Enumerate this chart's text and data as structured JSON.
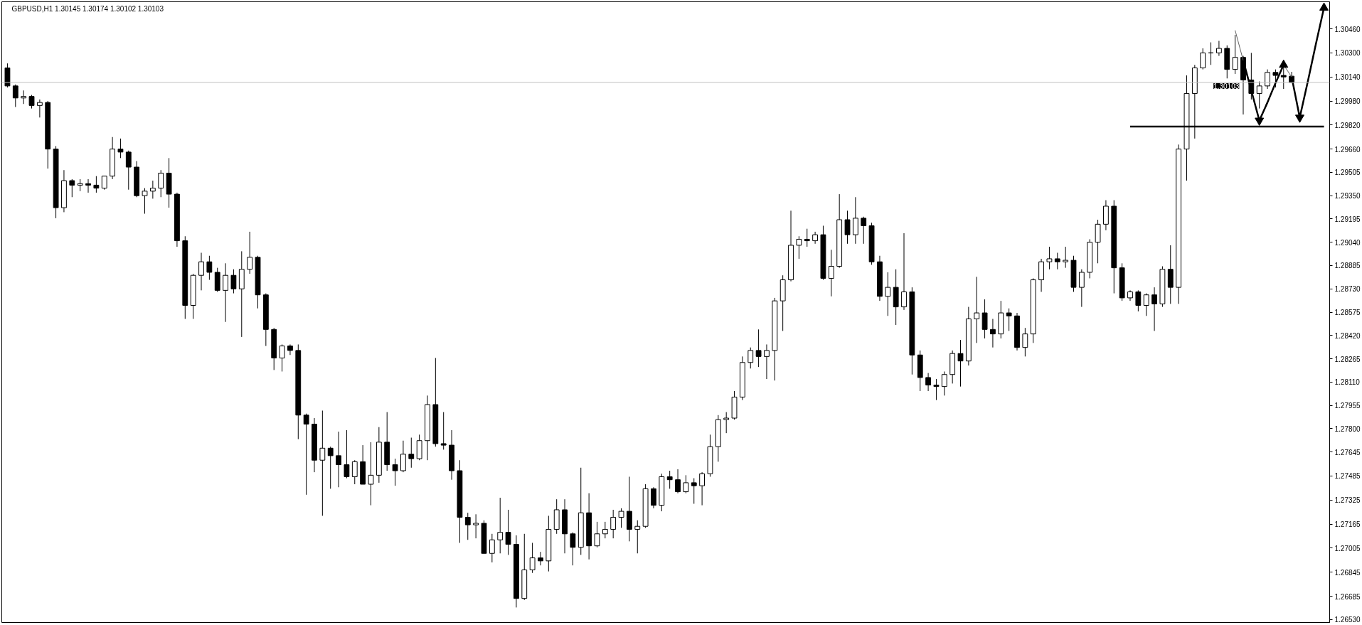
{
  "chart_data": {
    "type": "candlestick",
    "title": "GBPUSD,H1 1.30145 1.30174 1.30102 1.30103",
    "categories": [
      null,
      null,
      null,
      null,
      null,
      null,
      null,
      null,
      null,
      null,
      null,
      null,
      null,
      null,
      null,
      null,
      null,
      null,
      null,
      null,
      null,
      null,
      null,
      null,
      null,
      null,
      null,
      null,
      null,
      null,
      null,
      null,
      null,
      null,
      null,
      null,
      null,
      null,
      null,
      null,
      null,
      null,
      null,
      null,
      null,
      null,
      null,
      null,
      null,
      null,
      null,
      null,
      null,
      null,
      null,
      null,
      null,
      null,
      null,
      null,
      null,
      null,
      null,
      null,
      null,
      null,
      null,
      null,
      null,
      null,
      null,
      null,
      null,
      null,
      null,
      null,
      null,
      null,
      null,
      null,
      null,
      null,
      null,
      null,
      null,
      null,
      null,
      null,
      null,
      null,
      null,
      null,
      null,
      null,
      null,
      null,
      null,
      null,
      null,
      null,
      null,
      null,
      null,
      null,
      null,
      null,
      null,
      null,
      null,
      null,
      null,
      null,
      null,
      null,
      null,
      null,
      null,
      null,
      null,
      null,
      null,
      null,
      null,
      null,
      null,
      null,
      null,
      null,
      null,
      null,
      null,
      null,
      null,
      null,
      null,
      null,
      null,
      null,
      null,
      null,
      null,
      null,
      null,
      null,
      null,
      null,
      null,
      null,
      null,
      null,
      null,
      null,
      null,
      null,
      null,
      null,
      null,
      null,
      null,
      null,
      null,
      null,
      null,
      null
    ],
    "ohlc": [
      [
        1.302,
        1.3023,
        1.3007,
        1.3008
      ],
      [
        1.3008,
        1.3009,
        1.2994,
        1.3
      ],
      [
        1.3,
        1.3005,
        1.2996,
        1.3001
      ],
      [
        1.3001,
        1.3002,
        1.2993,
        1.2995
      ],
      [
        1.2995,
        1.2999,
        1.2987,
        1.2997
      ],
      [
        1.2997,
        1.2998,
        1.2953,
        1.2966
      ],
      [
        1.2966,
        1.2968,
        1.292,
        1.2927
      ],
      [
        1.2927,
        1.2952,
        1.2924,
        1.2945
      ],
      [
        1.2945,
        1.2946,
        1.2934,
        1.2942
      ],
      [
        1.2942,
        1.2946,
        1.2938,
        1.2943
      ],
      [
        1.2943,
        1.2946,
        1.2937,
        1.2942
      ],
      [
        1.2942,
        1.2948,
        1.2937,
        1.294
      ],
      [
        1.294,
        1.2948,
        1.2939,
        1.2948
      ],
      [
        1.2948,
        1.2974,
        1.2946,
        1.2966
      ],
      [
        1.2966,
        1.2973,
        1.296,
        1.2964
      ],
      [
        1.2964,
        1.2965,
        1.2939,
        1.2954
      ],
      [
        1.2954,
        1.2958,
        1.2934,
        1.2935
      ],
      [
        1.2935,
        1.294,
        1.2923,
        1.2938
      ],
      [
        1.2938,
        1.2945,
        1.2933,
        1.294
      ],
      [
        1.294,
        1.2952,
        1.2934,
        1.295
      ],
      [
        1.295,
        1.296,
        1.2927,
        1.2936
      ],
      [
        1.2936,
        1.2937,
        1.2901,
        1.2905
      ],
      [
        1.2905,
        1.2908,
        1.2853,
        1.2862
      ],
      [
        1.2862,
        1.2883,
        1.2853,
        1.2882
      ],
      [
        1.2882,
        1.2897,
        1.2872,
        1.2891
      ],
      [
        1.2891,
        1.2895,
        1.2879,
        1.2884
      ],
      [
        1.2884,
        1.2887,
        1.2871,
        1.2872
      ],
      [
        1.2872,
        1.289,
        1.2851,
        1.2882
      ],
      [
        1.2882,
        1.2886,
        1.287,
        1.2873
      ],
      [
        1.2873,
        1.2898,
        1.2841,
        1.2886
      ],
      [
        1.2886,
        1.2911,
        1.2883,
        1.2894
      ],
      [
        1.2894,
        1.2895,
        1.286,
        1.2869
      ],
      [
        1.2869,
        1.287,
        1.2835,
        1.2846
      ],
      [
        1.2846,
        1.2847,
        1.2819,
        1.2827
      ],
      [
        1.2827,
        1.2836,
        1.2818,
        1.2835
      ],
      [
        1.2835,
        1.2836,
        1.2829,
        1.2832
      ],
      [
        1.2832,
        1.2836,
        1.2773,
        1.2789
      ],
      [
        1.2789,
        1.279,
        1.2736,
        1.2783
      ],
      [
        1.2783,
        1.2787,
        1.2751,
        1.2759
      ],
      [
        1.2759,
        1.2792,
        1.2722,
        1.2767
      ],
      [
        1.2767,
        1.2768,
        1.274,
        1.2762
      ],
      [
        1.2762,
        1.2778,
        1.2741,
        1.2756
      ],
      [
        1.2756,
        1.2779,
        1.2747,
        1.2748
      ],
      [
        1.2748,
        1.2759,
        1.2743,
        1.2758
      ],
      [
        1.2758,
        1.2769,
        1.2743,
        1.2743
      ],
      [
        1.2743,
        1.2771,
        1.2729,
        1.2749
      ],
      [
        1.2749,
        1.2781,
        1.2744,
        1.2771
      ],
      [
        1.2771,
        1.2791,
        1.2752,
        1.2756
      ],
      [
        1.2756,
        1.276,
        1.2742,
        1.2752
      ],
      [
        1.2752,
        1.2772,
        1.2751,
        1.2763
      ],
      [
        1.2763,
        1.2774,
        1.2754,
        1.276
      ],
      [
        1.276,
        1.2776,
        1.2759,
        1.2772
      ],
      [
        1.2772,
        1.2802,
        1.2759,
        1.2796
      ],
      [
        1.2796,
        1.2827,
        1.2768,
        1.277
      ],
      [
        1.277,
        1.2791,
        1.2766,
        1.2769
      ],
      [
        1.2769,
        1.2779,
        1.2746,
        1.2752
      ],
      [
        1.2752,
        1.2759,
        1.2704,
        1.2721
      ],
      [
        1.2721,
        1.2724,
        1.2706,
        1.2716
      ],
      [
        1.2716,
        1.2723,
        1.2707,
        1.2717
      ],
      [
        1.2717,
        1.2719,
        1.2697,
        1.2697
      ],
      [
        1.2697,
        1.271,
        1.2691,
        1.2706
      ],
      [
        1.2706,
        1.2734,
        1.2697,
        1.2711
      ],
      [
        1.2711,
        1.2726,
        1.2696,
        1.2703
      ],
      [
        1.2703,
        1.2709,
        1.2661,
        1.2667
      ],
      [
        1.2667,
        1.271,
        1.2666,
        1.2686
      ],
      [
        1.2686,
        1.2704,
        1.2684,
        1.2694
      ],
      [
        1.2694,
        1.2698,
        1.2689,
        1.2692
      ],
      [
        1.2692,
        1.2722,
        1.2685,
        1.2713
      ],
      [
        1.2713,
        1.2733,
        1.271,
        1.2726
      ],
      [
        1.2726,
        1.2733,
        1.2697,
        1.271
      ],
      [
        1.271,
        1.2711,
        1.2689,
        1.2701
      ],
      [
        1.2701,
        1.2754,
        1.2696,
        1.2724
      ],
      [
        1.2724,
        1.2737,
        1.2693,
        1.2702
      ],
      [
        1.2702,
        1.2718,
        1.2701,
        1.271
      ],
      [
        1.271,
        1.2718,
        1.2707,
        1.2713
      ],
      [
        1.2713,
        1.2726,
        1.2707,
        1.2721
      ],
      [
        1.2721,
        1.2727,
        1.2714,
        1.2725
      ],
      [
        1.2725,
        1.2748,
        1.2705,
        1.2713
      ],
      [
        1.2713,
        1.2719,
        1.2697,
        1.2715
      ],
      [
        1.2715,
        1.2743,
        1.2714,
        1.274
      ],
      [
        1.274,
        1.2741,
        1.2727,
        1.2729
      ],
      [
        1.2729,
        1.275,
        1.2725,
        1.2748
      ],
      [
        1.2748,
        1.2752,
        1.274,
        1.2746
      ],
      [
        1.2746,
        1.2753,
        1.2737,
        1.2738
      ],
      [
        1.2738,
        1.2749,
        1.2737,
        1.2744
      ],
      [
        1.2744,
        1.2747,
        1.273,
        1.2742
      ],
      [
        1.2742,
        1.2751,
        1.2729,
        1.275
      ],
      [
        1.275,
        1.2776,
        1.2748,
        1.2768
      ],
      [
        1.2768,
        1.2789,
        1.2758,
        1.2786
      ],
      [
        1.2786,
        1.2791,
        1.2777,
        1.2787
      ],
      [
        1.2787,
        1.2805,
        1.2786,
        1.2801
      ],
      [
        1.2801,
        1.2828,
        1.2799,
        1.2824
      ],
      [
        1.2824,
        1.2834,
        1.282,
        1.2832
      ],
      [
        1.2832,
        1.2846,
        1.2821,
        1.2828
      ],
      [
        1.2828,
        1.2836,
        1.2813,
        1.2832
      ],
      [
        1.2832,
        1.2867,
        1.2812,
        1.2865
      ],
      [
        1.2865,
        1.2882,
        1.2845,
        1.2879
      ],
      [
        1.2879,
        1.2925,
        1.2878,
        1.2902
      ],
      [
        1.2902,
        1.2908,
        1.2893,
        1.2906
      ],
      [
        1.2906,
        1.2913,
        1.2901,
        1.2905
      ],
      [
        1.2905,
        1.2911,
        1.2903,
        1.2909
      ],
      [
        1.2909,
        1.2915,
        1.2879,
        1.288
      ],
      [
        1.288,
        1.2899,
        1.2868,
        1.2888
      ],
      [
        1.2888,
        1.2936,
        1.2887,
        1.2919
      ],
      [
        1.2919,
        1.2925,
        1.2903,
        1.2909
      ],
      [
        1.2909,
        1.2934,
        1.2903,
        1.292
      ],
      [
        1.292,
        1.2921,
        1.2903,
        1.2915
      ],
      [
        1.2915,
        1.2917,
        1.2889,
        1.2891
      ],
      [
        1.2891,
        1.2895,
        1.2865,
        1.2868
      ],
      [
        1.2868,
        1.2884,
        1.2855,
        1.2874
      ],
      [
        1.2874,
        1.2886,
        1.2849,
        1.2861
      ],
      [
        1.2861,
        1.291,
        1.2859,
        1.2871
      ],
      [
        1.2871,
        1.2874,
        1.2816,
        1.2829
      ],
      [
        1.2829,
        1.2832,
        1.2805,
        1.2814
      ],
      [
        1.2814,
        1.2817,
        1.2805,
        1.2809
      ],
      [
        1.2809,
        1.2813,
        1.2799,
        1.2808
      ],
      [
        1.2808,
        1.2818,
        1.2802,
        1.2816
      ],
      [
        1.2816,
        1.2832,
        1.281,
        1.283
      ],
      [
        1.283,
        1.2839,
        1.2808,
        1.2825
      ],
      [
        1.2825,
        1.2861,
        1.2822,
        1.2853
      ],
      [
        1.2853,
        1.2881,
        1.2837,
        1.2857
      ],
      [
        1.2857,
        1.2866,
        1.284,
        1.2846
      ],
      [
        1.2846,
        1.2853,
        1.2834,
        1.2843
      ],
      [
        1.2843,
        1.2865,
        1.284,
        1.2857
      ],
      [
        1.2857,
        1.286,
        1.2845,
        1.2855
      ],
      [
        1.2855,
        1.2857,
        1.2832,
        1.2834
      ],
      [
        1.2834,
        1.2847,
        1.2828,
        1.2843
      ],
      [
        1.2843,
        1.288,
        1.2837,
        1.2879
      ],
      [
        1.2879,
        1.2893,
        1.2871,
        1.2891
      ],
      [
        1.2891,
        1.2901,
        1.2886,
        1.2893
      ],
      [
        1.2893,
        1.2897,
        1.2886,
        1.2891
      ],
      [
        1.2891,
        1.2901,
        1.2887,
        1.2892
      ],
      [
        1.2892,
        1.2895,
        1.2871,
        1.2874
      ],
      [
        1.2874,
        1.2886,
        1.2861,
        1.2884
      ],
      [
        1.2884,
        1.2906,
        1.288,
        1.2904
      ],
      [
        1.2904,
        1.2919,
        1.289,
        1.2916
      ],
      [
        1.2916,
        1.2932,
        1.2912,
        1.2928
      ],
      [
        1.2928,
        1.2932,
        1.287,
        1.2887
      ],
      [
        1.2887,
        1.289,
        1.2865,
        1.2867
      ],
      [
        1.2867,
        1.2872,
        1.2865,
        1.2871
      ],
      [
        1.2871,
        1.2872,
        1.2858,
        1.2862
      ],
      [
        1.2862,
        1.287,
        1.2855,
        1.2869
      ],
      [
        1.2869,
        1.2874,
        1.2845,
        1.2863
      ],
      [
        1.2863,
        1.2888,
        1.2861,
        1.2886
      ],
      [
        1.2886,
        1.2902,
        1.2863,
        1.2874
      ],
      [
        1.2874,
        1.2969,
        1.2863,
        1.2966
      ],
      [
        1.2966,
        1.3015,
        1.2945,
        1.3003
      ],
      [
        1.3003,
        1.3022,
        1.2973,
        1.302
      ],
      [
        1.302,
        1.3033,
        1.3019,
        1.303
      ],
      [
        1.303,
        1.3037,
        1.3022,
        1.303
      ],
      [
        1.303,
        1.3038,
        1.3028,
        1.3033
      ],
      [
        1.3033,
        1.3035,
        1.3013,
        1.3019
      ],
      [
        1.3019,
        1.3042,
        1.3016,
        1.3027
      ],
      [
        1.3027,
        1.3028,
        1.2989,
        1.3012
      ],
      [
        1.3012,
        1.303,
        1.2999,
        1.3003
      ],
      [
        1.3003,
        1.3011,
        1.2993,
        1.3008
      ],
      [
        1.3008,
        1.3019,
        1.3006,
        1.3017
      ],
      [
        1.3017,
        1.3019,
        1.3007,
        1.3015
      ],
      [
        1.3015,
        1.3025,
        1.3006,
        1.3014
      ],
      [
        1.30145,
        1.30174,
        1.30102,
        1.30103
      ],
      null,
      null,
      null,
      null
    ],
    "ylim": [
      1.2651,
      1.3064
    ],
    "yticks": [
      {
        "value": 1.2653,
        "label": "1.26530"
      },
      1.26685,
      1.26845,
      1.27005,
      1.27165,
      1.27325,
      1.27485,
      1.27645,
      {
        "value": 1.278,
        "label": "1.27800"
      },
      1.27955,
      {
        "value": 1.2811,
        "label": "1.28110"
      },
      1.28265,
      {
        "value": 1.2842,
        "label": "1.28420"
      },
      1.28575,
      {
        "value": 1.2873,
        "label": "1.28730"
      },
      1.28885,
      {
        "value": 1.2904,
        "label": "1.29040"
      },
      1.29195,
      {
        "value": 1.2935,
        "label": "1.29350"
      },
      1.29505,
      {
        "value": 1.2966,
        "label": "1.29660"
      },
      {
        "value": 1.2982,
        "label": "1.29820"
      },
      {
        "value": 1.2998,
        "label": "1.29980"
      },
      {
        "value": 1.3014,
        "label": "1.30140"
      },
      {
        "value": 1.303,
        "label": "1.30300"
      },
      {
        "value": 1.3046,
        "label": "1.30460"
      }
    ],
    "tick_labels": "y",
    "ref_lines": [
      {
        "axis": "y",
        "value": 1.30103,
        "label": "1.30103",
        "color": "#c0c0c0"
      }
    ],
    "series": [
      {
        "type": "line",
        "color": "#000000",
        "values": [
          null,
          null,
          null,
          null,
          null,
          null,
          null,
          null,
          null,
          null,
          null,
          null,
          null,
          null,
          null,
          null,
          null,
          null,
          null,
          null,
          null,
          null,
          null,
          null,
          null,
          null,
          null,
          null,
          null,
          null,
          null,
          null,
          null,
          null,
          null,
          null,
          null,
          null,
          null,
          null,
          null,
          null,
          null,
          null,
          null,
          null,
          null,
          null,
          null,
          null,
          null,
          null,
          null,
          null,
          null,
          null,
          null,
          null,
          null,
          null,
          null,
          null,
          null,
          null,
          null,
          null,
          null,
          null,
          null,
          null,
          null,
          null,
          null,
          null,
          null,
          null,
          null,
          null,
          null,
          null,
          null,
          null,
          null,
          null,
          null,
          null,
          null,
          null,
          null,
          null,
          null,
          null,
          null,
          null,
          null,
          null,
          null,
          null,
          null,
          null,
          null,
          null,
          null,
          null,
          null,
          null,
          null,
          null,
          null,
          null,
          null,
          null,
          null,
          null,
          null,
          null,
          null,
          null,
          null,
          null,
          null,
          null,
          null,
          null,
          null,
          null,
          null,
          null,
          null,
          null,
          null,
          null,
          null,
          null,
          null,
          null,
          null,
          null,
          null,
          1.2981,
          1.2981,
          1.2981,
          1.2981,
          1.2981,
          1.2981,
          1.2981,
          1.2981,
          1.2981,
          1.2981,
          1.2981,
          1.2981,
          1.2981,
          1.2981,
          1.2981,
          1.2981,
          1.2981,
          1.2981,
          1.2981,
          1.2981,
          1.2981,
          1.2981,
          1.2981,
          1.2981,
          1.2981
        ]
      },
      {
        "type": "line",
        "color": "#606060",
        "values": [
          null,
          null,
          null,
          null,
          null,
          null,
          null,
          null,
          null,
          null,
          null,
          null,
          null,
          null,
          null,
          null,
          null,
          null,
          null,
          null,
          null,
          null,
          null,
          null,
          null,
          null,
          null,
          null,
          null,
          null,
          null,
          null,
          null,
          null,
          null,
          null,
          null,
          null,
          null,
          null,
          null,
          null,
          null,
          null,
          null,
          null,
          null,
          null,
          null,
          null,
          null,
          null,
          null,
          null,
          null,
          null,
          null,
          null,
          null,
          null,
          null,
          null,
          null,
          null,
          null,
          null,
          null,
          null,
          null,
          null,
          null,
          null,
          null,
          null,
          null,
          null,
          null,
          null,
          null,
          null,
          null,
          null,
          null,
          null,
          null,
          null,
          null,
          null,
          null,
          null,
          null,
          null,
          null,
          null,
          null,
          null,
          null,
          null,
          null,
          null,
          null,
          null,
          null,
          null,
          null,
          null,
          null,
          null,
          null,
          null,
          null,
          null,
          null,
          null,
          null,
          null,
          null,
          null,
          null,
          null,
          null,
          null,
          null,
          null,
          null,
          null,
          null,
          null,
          null,
          null,
          null,
          null,
          null,
          null,
          null,
          null,
          null,
          null,
          null,
          null,
          null,
          null,
          null,
          null,
          null,
          null,
          null,
          null,
          null,
          null,
          null,
          null,
          1.3045,
          1.3025,
          null,
          null,
          null,
          null,
          1.3022,
          1.3014,
          null,
          null,
          null,
          null
        ]
      },
      {
        "type": "line",
        "color": "#000000",
        "values": [
          null,
          null,
          null,
          null,
          null,
          null,
          null,
          null,
          null,
          null,
          null,
          null,
          null,
          null,
          null,
          null,
          null,
          null,
          null,
          null,
          null,
          null,
          null,
          null,
          null,
          null,
          null,
          null,
          null,
          null,
          null,
          null,
          null,
          null,
          null,
          null,
          null,
          null,
          null,
          null,
          null,
          null,
          null,
          null,
          null,
          null,
          null,
          null,
          null,
          null,
          null,
          null,
          null,
          null,
          null,
          null,
          null,
          null,
          null,
          null,
          null,
          null,
          null,
          null,
          null,
          null,
          null,
          null,
          null,
          null,
          null,
          null,
          null,
          null,
          null,
          null,
          null,
          null,
          null,
          null,
          null,
          null,
          null,
          null,
          null,
          null,
          null,
          null,
          null,
          null,
          null,
          null,
          null,
          null,
          null,
          null,
          null,
          null,
          null,
          null,
          null,
          null,
          null,
          null,
          null,
          null,
          null,
          null,
          null,
          null,
          null,
          null,
          null,
          null,
          null,
          null,
          null,
          null,
          null,
          null,
          null,
          null,
          null,
          null,
          null,
          null,
          null,
          null,
          null,
          null,
          null,
          null,
          null,
          null,
          null,
          null,
          null,
          null,
          null,
          null,
          null,
          null,
          null,
          null,
          null,
          null,
          null,
          null,
          null,
          null,
          null,
          null,
          null,
          1.3025,
          1.3005,
          1.2985,
          1.2997,
          1.301,
          1.3022,
          null,
          null,
          null,
          null,
          null
        ]
      },
      {
        "type": "line",
        "color": "#000000",
        "values": [
          null,
          null,
          null,
          null,
          null,
          null,
          null,
          null,
          null,
          null,
          null,
          null,
          null,
          null,
          null,
          null,
          null,
          null,
          null,
          null,
          null,
          null,
          null,
          null,
          null,
          null,
          null,
          null,
          null,
          null,
          null,
          null,
          null,
          null,
          null,
          null,
          null,
          null,
          null,
          null,
          null,
          null,
          null,
          null,
          null,
          null,
          null,
          null,
          null,
          null,
          null,
          null,
          null,
          null,
          null,
          null,
          null,
          null,
          null,
          null,
          null,
          null,
          null,
          null,
          null,
          null,
          null,
          null,
          null,
          null,
          null,
          null,
          null,
          null,
          null,
          null,
          null,
          null,
          null,
          null,
          null,
          null,
          null,
          null,
          null,
          null,
          null,
          null,
          null,
          null,
          null,
          null,
          null,
          null,
          null,
          null,
          null,
          null,
          null,
          null,
          null,
          null,
          null,
          null,
          null,
          null,
          null,
          null,
          null,
          null,
          null,
          null,
          null,
          null,
          null,
          null,
          null,
          null,
          null,
          null,
          null,
          null,
          null,
          null,
          null,
          null,
          null,
          null,
          null,
          null,
          null,
          null,
          null,
          null,
          null,
          null,
          null,
          null,
          null,
          null,
          null,
          null,
          null,
          null,
          null,
          null,
          null,
          null,
          null,
          null,
          null,
          null,
          null,
          null,
          null,
          null,
          null,
          null,
          null,
          1.3014,
          1.2987,
          1.3011,
          1.3036,
          1.306
        ]
      },
      {
        "type": "scatter",
        "color": "#000000",
        "marker": "triangle",
        "values": [
          null,
          null,
          null,
          null,
          null,
          null,
          null,
          null,
          null,
          null,
          null,
          null,
          null,
          null,
          null,
          null,
          null,
          null,
          null,
          null,
          null,
          null,
          null,
          null,
          null,
          null,
          null,
          null,
          null,
          null,
          null,
          null,
          null,
          null,
          null,
          null,
          null,
          null,
          null,
          null,
          null,
          null,
          null,
          null,
          null,
          null,
          null,
          null,
          null,
          null,
          null,
          null,
          null,
          null,
          null,
          null,
          null,
          null,
          null,
          null,
          null,
          null,
          null,
          null,
          null,
          null,
          null,
          null,
          null,
          null,
          null,
          null,
          null,
          null,
          null,
          null,
          null,
          null,
          null,
          null,
          null,
          null,
          null,
          null,
          null,
          null,
          null,
          null,
          null,
          null,
          null,
          null,
          null,
          null,
          null,
          null,
          null,
          null,
          null,
          null,
          null,
          null,
          null,
          null,
          null,
          null,
          null,
          null,
          null,
          null,
          null,
          null,
          null,
          null,
          null,
          null,
          null,
          null,
          null,
          null,
          null,
          null,
          null,
          null,
          null,
          null,
          null,
          null,
          null,
          null,
          null,
          null,
          null,
          null,
          null,
          null,
          null,
          null,
          null,
          null,
          null,
          null,
          null,
          null,
          null,
          null,
          null,
          null,
          null,
          null,
          null,
          null,
          null,
          null,
          null,
          1.2985,
          null,
          null,
          1.3022,
          null,
          1.2987,
          null,
          null,
          1.306
        ]
      }
    ]
  }
}
